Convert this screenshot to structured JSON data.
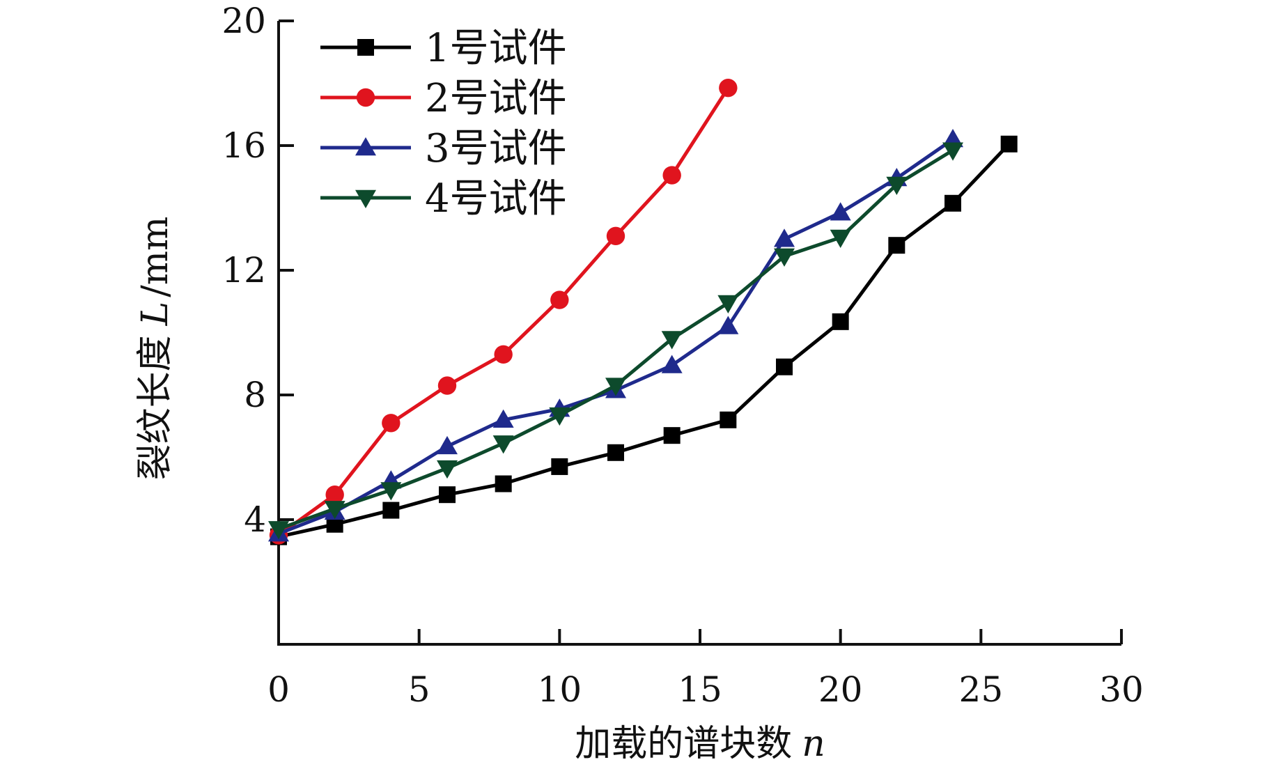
{
  "chart_data": {
    "type": "line",
    "title": "",
    "xlabel": "加载的谱块数",
    "xlabel_var": "n",
    "ylabel": "裂纹长度",
    "ylabel_var": "L",
    "ylabel_unit": "/mm",
    "xlim": [
      0,
      30
    ],
    "ylim": [
      0,
      20
    ],
    "x_ticks": [
      0,
      5,
      10,
      15,
      20,
      25,
      30
    ],
    "y_ticks": [
      4,
      8,
      12,
      16,
      20
    ],
    "grid": false,
    "legend_position": "top-left",
    "series": [
      {
        "name": "1号试件",
        "color": "#000000",
        "marker": "square",
        "x": [
          0,
          2,
          4,
          6,
          8,
          10,
          12,
          14,
          16,
          18,
          20,
          22,
          24,
          26
        ],
        "y": [
          3.45,
          3.85,
          4.3,
          4.8,
          5.15,
          5.7,
          6.15,
          6.7,
          7.2,
          8.9,
          10.35,
          12.8,
          14.15,
          16.05
        ]
      },
      {
        "name": "2号试件",
        "color": "#e0141e",
        "marker": "circle",
        "x": [
          0,
          2,
          4,
          6,
          8,
          10,
          12,
          14,
          16
        ],
        "y": [
          3.5,
          4.8,
          7.1,
          8.3,
          9.3,
          11.05,
          13.1,
          15.05,
          17.85
        ]
      },
      {
        "name": "3号试件",
        "color": "#1f2a8c",
        "marker": "triangle-up",
        "x": [
          0,
          2,
          4,
          6,
          8,
          10,
          12,
          14,
          16,
          18,
          20,
          22,
          24
        ],
        "y": [
          3.55,
          4.25,
          5.25,
          6.35,
          7.2,
          7.55,
          8.15,
          8.95,
          10.2,
          13.0,
          13.85,
          14.95,
          16.2
        ]
      },
      {
        "name": "4号试件",
        "color": "#0d4a2c",
        "marker": "triangle-down",
        "x": [
          0,
          2,
          4,
          6,
          8,
          10,
          12,
          14,
          16,
          18,
          20,
          22,
          24
        ],
        "y": [
          3.7,
          4.35,
          4.95,
          5.65,
          6.45,
          7.35,
          8.3,
          9.8,
          10.95,
          12.45,
          13.05,
          14.75,
          15.85
        ]
      }
    ]
  }
}
